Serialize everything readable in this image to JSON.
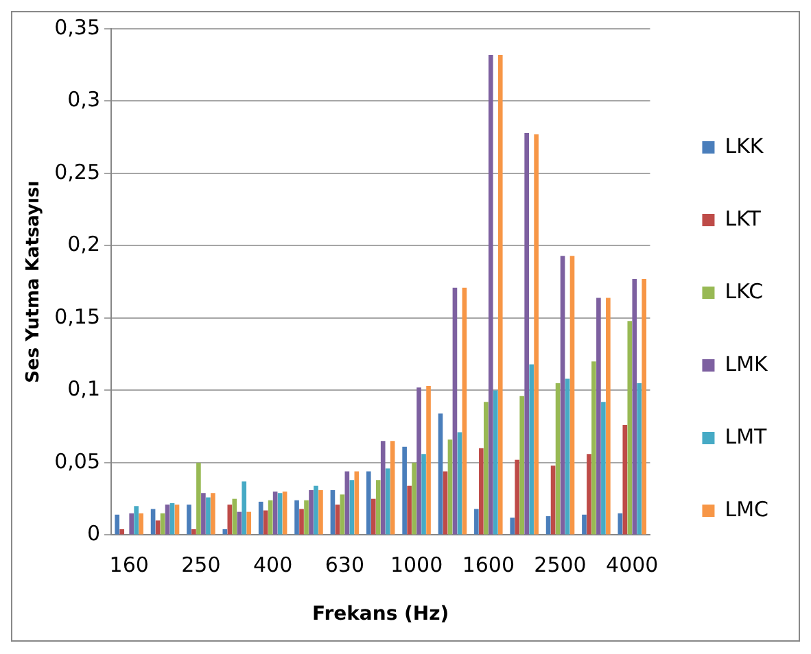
{
  "chart_data": {
    "type": "bar",
    "xlabel": "Frekans (Hz)",
    "ylabel": "Ses Yutma Katsayısı",
    "categories": [
      "160",
      null,
      "250",
      null,
      "400",
      null,
      "630",
      null,
      "1000",
      null,
      "1600",
      null,
      "2500",
      null,
      "4000"
    ],
    "series": [
      {
        "name": "LKK",
        "color": "#4a7ebb",
        "values": [
          0.014,
          0.018,
          0.021,
          0.004,
          0.023,
          0.024,
          0.031,
          0.044,
          0.061,
          0.084,
          0.018,
          0.012,
          0.013,
          0.014,
          0.015
        ]
      },
      {
        "name": "LKT",
        "color": "#be4b48",
        "values": [
          0.004,
          0.01,
          0.004,
          0.021,
          0.017,
          0.018,
          0.021,
          0.025,
          0.034,
          0.044,
          0.06,
          0.052,
          0.048,
          0.056,
          0.076
        ]
      },
      {
        "name": "LKC",
        "color": "#98b954",
        "values": [
          0,
          0.015,
          0.05,
          0.025,
          0.024,
          0.024,
          0.028,
          0.038,
          0.05,
          0.066,
          0.092,
          0.096,
          0.105,
          0.12,
          0.148
        ]
      },
      {
        "name": "LMK",
        "color": "#7d60a0",
        "values": [
          0.015,
          0.021,
          0.029,
          0.016,
          0.03,
          0.031,
          0.044,
          0.065,
          0.102,
          0.171,
          0.332,
          0.278,
          0.193,
          0.164,
          0.177
        ]
      },
      {
        "name": "LMT",
        "color": "#46aac5",
        "values": [
          0.02,
          0.022,
          0.026,
          0.037,
          0.029,
          0.034,
          0.038,
          0.046,
          0.056,
          0.071,
          0.1,
          0.118,
          0.108,
          0.092,
          0.105
        ]
      },
      {
        "name": "LMC",
        "color": "#f79646",
        "values": [
          0.015,
          0.021,
          0.029,
          0.016,
          0.03,
          0.031,
          0.044,
          0.065,
          0.103,
          0.171,
          0.332,
          0.277,
          0.193,
          0.164,
          0.177
        ]
      }
    ],
    "ylim": [
      0,
      0.35
    ],
    "yticks": [
      {
        "value": 0,
        "label": "0"
      },
      {
        "value": 0.05,
        "label": "0,05"
      },
      {
        "value": 0.1,
        "label": "0,1"
      },
      {
        "value": 0.15,
        "label": "0,15"
      },
      {
        "value": 0.2,
        "label": "0,2"
      },
      {
        "value": 0.25,
        "label": "0,25"
      },
      {
        "value": 0.3,
        "label": "0,3"
      },
      {
        "value": 0.35,
        "label": "0,35"
      }
    ],
    "grid": "y",
    "legend": "right"
  }
}
